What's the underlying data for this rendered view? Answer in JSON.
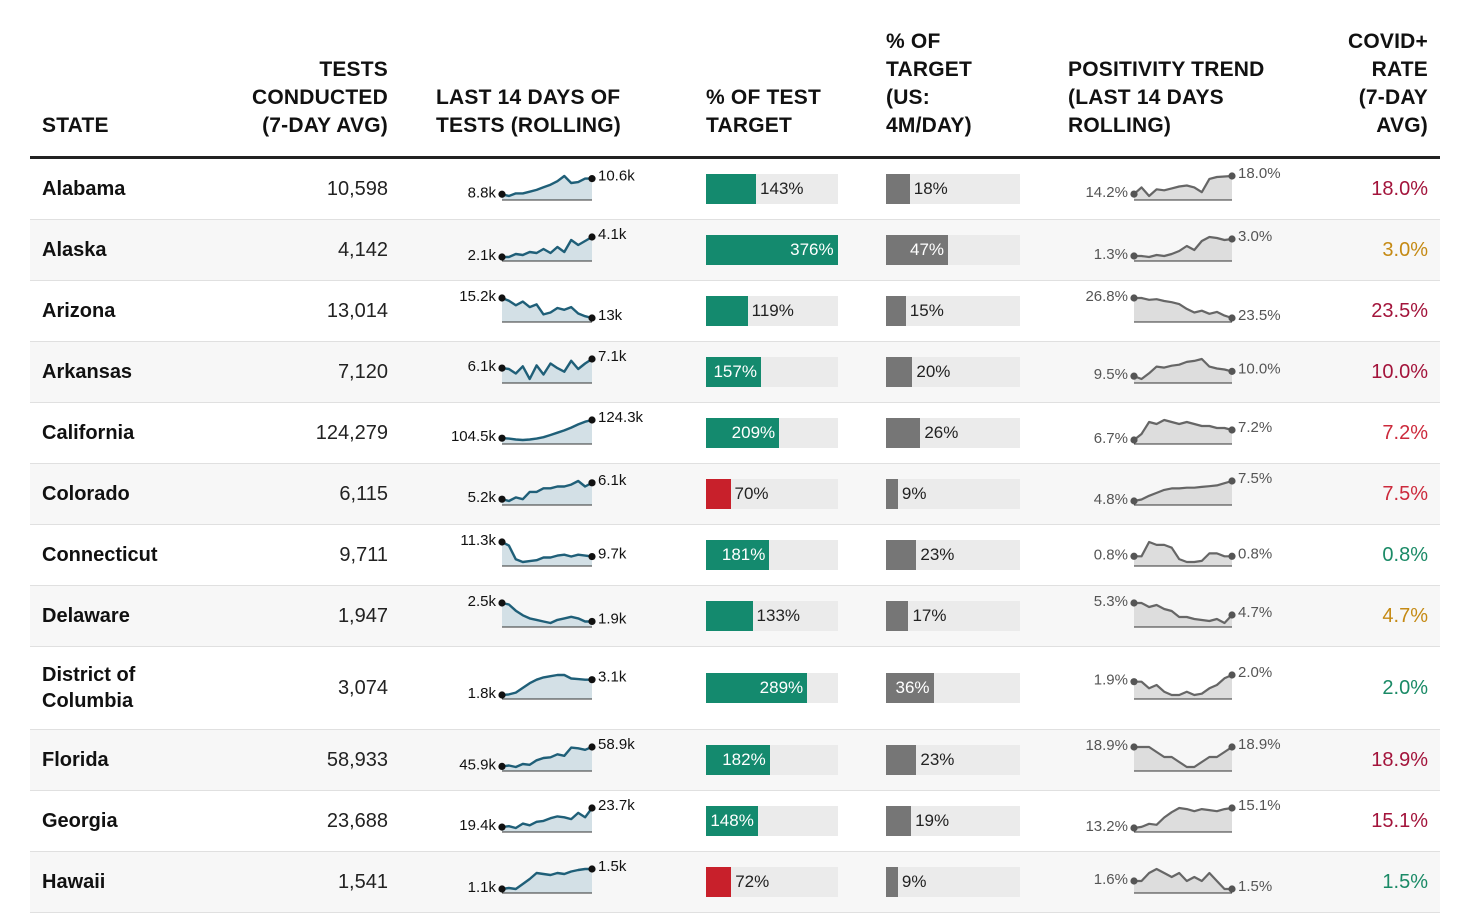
{
  "headers": {
    "state": "STATE",
    "tests_lines": [
      "TESTS",
      "CONDUCTED",
      "(7-DAY AVG)"
    ],
    "spark_lines": [
      "LAST 14 DAYS OF",
      "TESTS (ROLLING)"
    ],
    "pct_target_lines": [
      "% OF TEST",
      "TARGET"
    ],
    "pct_us_lines": [
      "% OF",
      "TARGET",
      "(US:",
      "4M/DAY)"
    ],
    "pos_trend_lines": [
      "POSITIVITY TREND",
      "(LAST 14 DAYS",
      "ROLLING)"
    ],
    "rate_lines": [
      "COVID+",
      "RATE",
      "(7-DAY",
      "AVG)"
    ]
  },
  "colors": {
    "teal": "#148a6e",
    "red": "#c8202b",
    "gray_bar": "#767676",
    "track": "#ebebeb",
    "spark_line": "#1f5f78",
    "spark_fill": "#d3e0e6",
    "pos_line": "#666666",
    "pos_fill": "#dddddd",
    "rate_red": "#a3143b",
    "rate_pink": "#cc2a3c",
    "rate_gold": "#c58a14",
    "rate_green": "#1a8a66"
  },
  "chart_data": {
    "type": "table",
    "rows": [
      {
        "state_lines": [
          "Alabama"
        ],
        "tests": "10,598",
        "spark_start": "8.8k",
        "spark_end": "10.6k",
        "spark": [
          8.8,
          8.6,
          8.9,
          8.9,
          9.1,
          9.3,
          9.6,
          9.9,
          10.3,
          10.9,
          10.1,
          10.2,
          10.6,
          10.6
        ],
        "pct_target": 143,
        "pct_target_label": "143%",
        "pct_target_color": "teal",
        "pct_us": 18,
        "pct_us_label": "18%",
        "pos_start": "14.2%",
        "pos_end": "18.0%",
        "pos": [
          14.2,
          15.6,
          13.8,
          15.2,
          15.0,
          15.4,
          15.8,
          16.0,
          15.6,
          14.6,
          17.4,
          17.8,
          17.9,
          18.0
        ],
        "rate": "18.0%",
        "rate_color": "rate_red"
      },
      {
        "state_lines": [
          "Alaska"
        ],
        "tests": "4,142",
        "spark_start": "2.1k",
        "spark_end": "4.1k",
        "spark": [
          2.1,
          2.1,
          2.4,
          2.3,
          2.6,
          2.5,
          2.9,
          2.5,
          3.1,
          2.6,
          3.8,
          3.3,
          3.7,
          4.1
        ],
        "pct_target": 376,
        "pct_target_label": "376%",
        "pct_target_color": "teal",
        "pct_us": 47,
        "pct_us_label": "47%",
        "pos_start": "1.3%",
        "pos_end": "3.0%",
        "pos": [
          1.3,
          1.3,
          1.2,
          1.4,
          1.3,
          1.5,
          1.8,
          2.3,
          1.9,
          2.8,
          3.2,
          3.1,
          2.9,
          3.0
        ],
        "rate": "3.0%",
        "rate_color": "rate_gold"
      },
      {
        "state_lines": [
          "Arizona"
        ],
        "tests": "13,014",
        "spark_start": "15.2k",
        "spark_end": "13k",
        "spark": [
          15.2,
          14.9,
          14.4,
          14.8,
          14.2,
          14.5,
          13.4,
          13.6,
          14.1,
          13.9,
          14.2,
          13.5,
          13.2,
          13.0
        ],
        "pct_target": 119,
        "pct_target_label": "119%",
        "pct_target_color": "teal",
        "pct_us": 15,
        "pct_us_label": "15%",
        "pos_start": "26.8%",
        "pos_end": "23.5%",
        "pos": [
          26.8,
          26.8,
          26.5,
          26.6,
          26.3,
          26.1,
          25.8,
          25.0,
          24.4,
          24.7,
          24.2,
          24.5,
          23.9,
          23.5
        ],
        "rate": "23.5%",
        "rate_color": "rate_red"
      },
      {
        "state_lines": [
          "Arkansas"
        ],
        "tests": "7,120",
        "spark_start": "6.1k",
        "spark_end": "7.1k",
        "spark": [
          6.1,
          6.0,
          5.5,
          6.3,
          4.9,
          6.4,
          5.4,
          6.6,
          6.1,
          5.7,
          6.9,
          6.0,
          6.6,
          7.1
        ],
        "pct_target": 157,
        "pct_target_label": "157%",
        "pct_target_color": "teal",
        "pct_us": 20,
        "pct_us_label": "20%",
        "pos_start": "9.5%",
        "pos_end": "10.0%",
        "pos": [
          9.5,
          9.2,
          9.8,
          10.5,
          10.4,
          10.6,
          10.7,
          11.0,
          11.1,
          11.3,
          10.5,
          10.3,
          10.2,
          10.0
        ],
        "rate": "10.0%",
        "rate_color": "rate_red"
      },
      {
        "state_lines": [
          "California"
        ],
        "tests": "124,279",
        "spark_start": "104.5k",
        "spark_end": "124.3k",
        "spark": [
          104.5,
          104.0,
          103.0,
          102.5,
          103.0,
          104.0,
          105.5,
          108.0,
          110.5,
          113.0,
          116.0,
          119.5,
          122.5,
          124.3
        ],
        "pct_target": 209,
        "pct_target_label": "209%",
        "pct_target_color": "teal",
        "pct_us": 26,
        "pct_us_label": "26%",
        "pos_start": "6.7%",
        "pos_end": "7.2%",
        "pos": [
          6.7,
          7.0,
          7.6,
          7.5,
          7.7,
          7.6,
          7.5,
          7.6,
          7.5,
          7.4,
          7.4,
          7.3,
          7.3,
          7.2
        ],
        "rate": "7.2%",
        "rate_color": "rate_pink"
      },
      {
        "state_lines": [
          "Colorado"
        ],
        "tests": "6,115",
        "spark_start": "5.2k",
        "spark_end": "6.1k",
        "spark": [
          5.2,
          5.1,
          5.3,
          5.2,
          5.6,
          5.6,
          5.8,
          5.8,
          5.9,
          5.9,
          6.0,
          6.2,
          5.9,
          6.1
        ],
        "pct_target": 70,
        "pct_target_label": "70%",
        "pct_target_color": "red",
        "pct_us": 9,
        "pct_us_label": "9%",
        "pos_start": "4.8%",
        "pos_end": "7.5%",
        "pos": [
          4.8,
          5.0,
          5.5,
          5.9,
          6.3,
          6.5,
          6.5,
          6.6,
          6.6,
          6.7,
          6.8,
          6.9,
          7.2,
          7.5
        ],
        "rate": "7.5%",
        "rate_color": "rate_pink"
      },
      {
        "state_lines": [
          "Connecticut"
        ],
        "tests": "9,711",
        "spark_start": "11.3k",
        "spark_end": "9.7k",
        "spark": [
          11.3,
          10.9,
          9.4,
          9.1,
          9.2,
          9.3,
          9.6,
          9.6,
          9.8,
          9.9,
          9.7,
          9.9,
          9.8,
          9.7
        ],
        "pct_target": 181,
        "pct_target_label": "181%",
        "pct_target_color": "teal",
        "pct_us": 23,
        "pct_us_label": "23%",
        "pos_start": "0.8%",
        "pos_end": "0.8%",
        "pos": [
          0.8,
          0.8,
          1.05,
          1.0,
          1.0,
          0.95,
          0.75,
          0.7,
          0.7,
          0.72,
          0.85,
          0.85,
          0.8,
          0.8
        ],
        "rate": "0.8%",
        "rate_color": "rate_green"
      },
      {
        "state_lines": [
          "Delaware"
        ],
        "tests": "1,947",
        "spark_start": "2.5k",
        "spark_end": "1.9k",
        "spark": [
          2.5,
          2.45,
          2.25,
          2.1,
          2.0,
          1.95,
          1.9,
          1.85,
          1.95,
          2.0,
          2.05,
          2.0,
          1.9,
          1.9
        ],
        "pct_target": 133,
        "pct_target_label": "133%",
        "pct_target_color": "teal",
        "pct_us": 17,
        "pct_us_label": "17%",
        "pos_start": "5.3%",
        "pos_end": "4.7%",
        "pos": [
          5.3,
          5.3,
          5.1,
          5.2,
          5.0,
          4.9,
          4.6,
          4.6,
          4.5,
          4.45,
          4.4,
          4.5,
          4.3,
          4.7
        ],
        "rate": "4.7%",
        "rate_color": "rate_gold"
      },
      {
        "state_lines": [
          "District of",
          "Columbia"
        ],
        "tests": "3,074",
        "spark_start": "1.8k",
        "spark_end": "3.1k",
        "spark": [
          1.8,
          1.85,
          2.0,
          2.4,
          2.8,
          3.1,
          3.3,
          3.4,
          3.5,
          3.5,
          3.2,
          3.15,
          3.1,
          3.1
        ],
        "pct_target": 289,
        "pct_target_label": "289%",
        "pct_target_color": "teal",
        "pct_us": 36,
        "pct_us_label": "36%",
        "pos_start": "1.9%",
        "pos_end": "2.0%",
        "pos": [
          1.9,
          1.9,
          1.8,
          1.85,
          1.75,
          1.7,
          1.7,
          1.75,
          1.7,
          1.72,
          1.8,
          1.85,
          1.95,
          2.0
        ],
        "rate": "2.0%",
        "rate_color": "rate_green"
      },
      {
        "state_lines": [
          "Florida"
        ],
        "tests": "58,933",
        "spark_start": "45.9k",
        "spark_end": "58.9k",
        "spark": [
          45.9,
          46.5,
          45.5,
          47.5,
          47.0,
          50.0,
          51.5,
          52.0,
          54.0,
          53.0,
          58.5,
          58.0,
          57.0,
          58.9
        ],
        "pct_target": 182,
        "pct_target_label": "182%",
        "pct_target_color": "teal",
        "pct_us": 23,
        "pct_us_label": "23%",
        "pos_start": "18.9%",
        "pos_end": "18.9%",
        "pos": [
          18.9,
          18.9,
          18.9,
          18.85,
          18.8,
          18.8,
          18.75,
          18.7,
          18.7,
          18.75,
          18.8,
          18.8,
          18.85,
          18.9
        ],
        "rate": "18.9%",
        "rate_color": "rate_red"
      },
      {
        "state_lines": [
          "Georgia"
        ],
        "tests": "23,688",
        "spark_start": "19.4k",
        "spark_end": "23.7k",
        "spark": [
          19.4,
          19.6,
          19.2,
          20.2,
          19.8,
          20.6,
          20.8,
          21.4,
          21.8,
          21.6,
          21.2,
          22.6,
          21.6,
          23.7
        ],
        "pct_target": 148,
        "pct_target_label": "148%",
        "pct_target_color": "teal",
        "pct_us": 19,
        "pct_us_label": "19%",
        "pos_start": "13.2%",
        "pos_end": "15.1%",
        "pos": [
          13.2,
          13.3,
          13.6,
          13.5,
          14.2,
          14.7,
          15.1,
          15.0,
          14.8,
          15.0,
          14.9,
          14.8,
          15.0,
          15.1
        ],
        "rate": "15.1%",
        "rate_color": "rate_red"
      },
      {
        "state_lines": [
          "Hawaii"
        ],
        "tests": "1,541",
        "spark_start": "1.1k",
        "spark_end": "1.5k",
        "spark": [
          1.1,
          1.12,
          1.1,
          1.2,
          1.3,
          1.42,
          1.4,
          1.38,
          1.42,
          1.4,
          1.45,
          1.48,
          1.5,
          1.5
        ],
        "pct_target": 72,
        "pct_target_label": "72%",
        "pct_target_color": "red",
        "pct_us": 9,
        "pct_us_label": "9%",
        "pos_start": "1.6%",
        "pos_end": "1.5%",
        "pos": [
          1.6,
          1.6,
          1.7,
          1.75,
          1.7,
          1.65,
          1.7,
          1.6,
          1.65,
          1.6,
          1.7,
          1.6,
          1.5,
          1.5
        ],
        "rate": "1.5%",
        "rate_color": "rate_green"
      }
    ]
  }
}
